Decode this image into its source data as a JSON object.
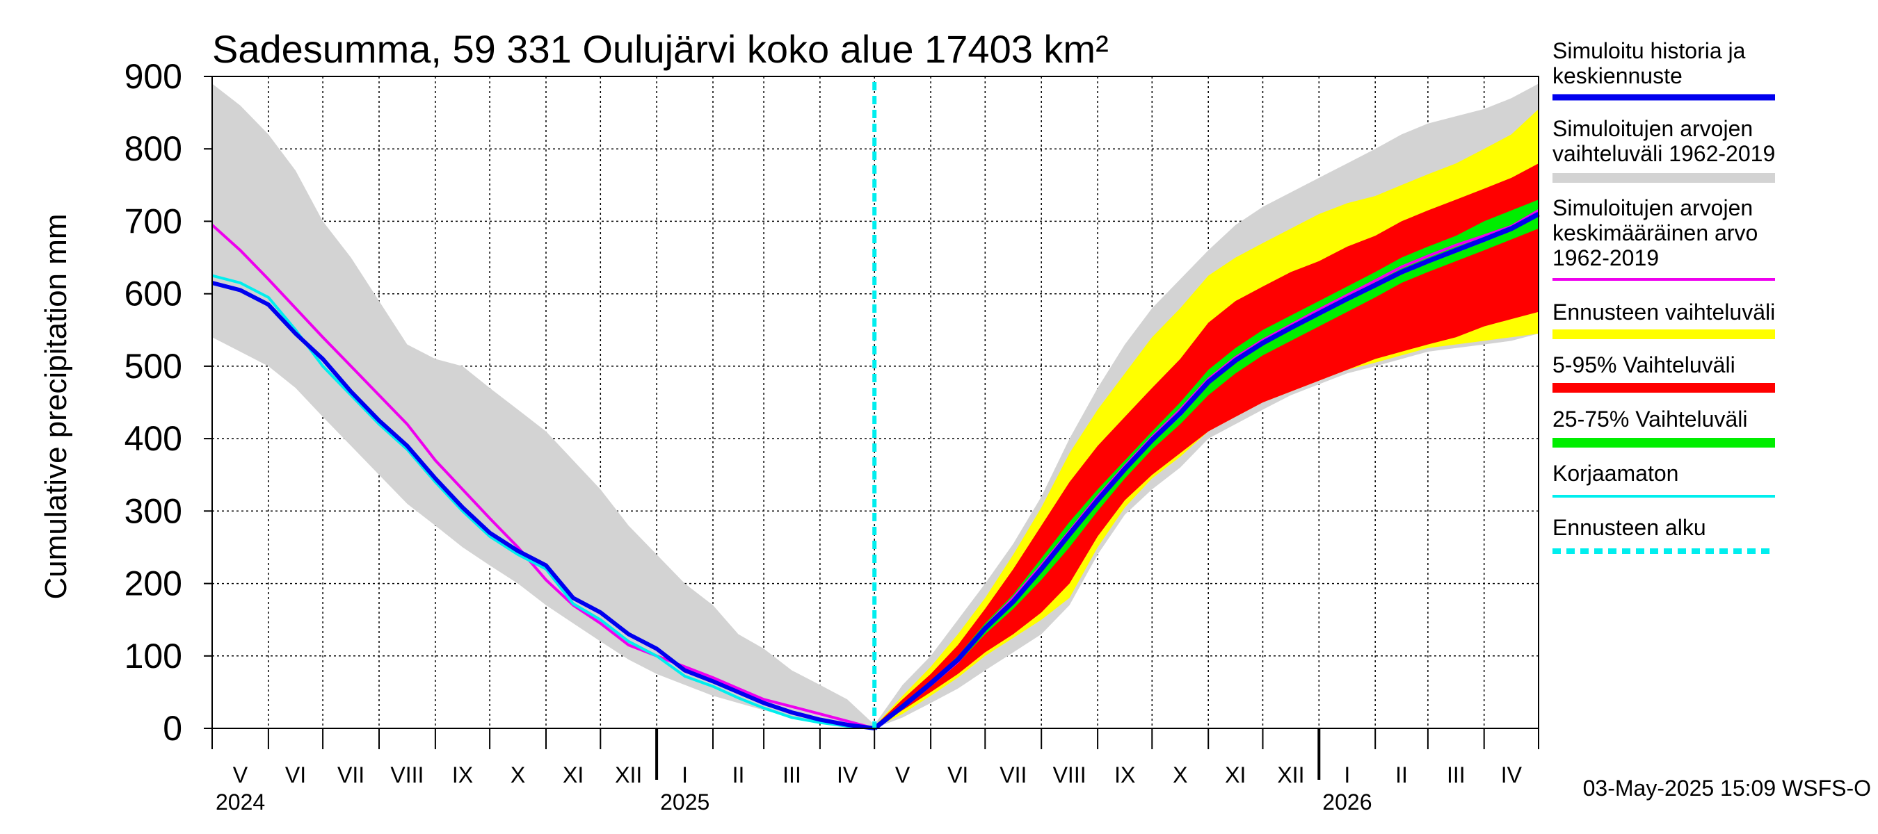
{
  "chart_data": {
    "type": "area",
    "title": "Sadesumma, 59 331 Oulujärvi koko alue 17403 km²",
    "ylabel": "Cumulative precipitation   mm",
    "ylim": [
      0,
      900
    ],
    "yticks": [
      "0",
      "100",
      "200",
      "300",
      "400",
      "500",
      "600",
      "700",
      "800",
      "900"
    ],
    "x_start": "2024-05-01",
    "x_end": "2026-05-01",
    "forecast_start": "2025-05-01",
    "months": [
      "V",
      "VI",
      "VII",
      "VIII",
      "IX",
      "X",
      "XI",
      "XII",
      "I",
      "II",
      "III",
      "IV",
      "V",
      "VI",
      "VII",
      "VIII",
      "IX",
      "X",
      "XI",
      "XII",
      "I",
      "II",
      "III",
      "IV"
    ],
    "years": [
      "2024",
      "2025",
      "2026"
    ],
    "timestamp": "03-May-2025 15:09 WSFS-O",
    "legend": [
      {
        "label": "Simuloitu historia ja keskiennuste",
        "lines": [
          "Simuloitu historia ja",
          "keskiennuste"
        ],
        "color": "#0000ee",
        "style": "line"
      },
      {
        "label": "Simuloitujen arvojen vaihteluväli 1962-2019",
        "lines": [
          "Simuloitujen arvojen",
          "vaihteluväli 1962-2019"
        ],
        "color": "#d3d3d3",
        "style": "band"
      },
      {
        "label": "Simuloitujen arvojen keskimääräinen arvo 1962-2019",
        "lines": [
          "Simuloitujen arvojen",
          "keskimääräinen arvo",
          "   1962-2019"
        ],
        "color": "#ee00ee",
        "style": "thin"
      },
      {
        "label": "Ennusteen vaihteluväli",
        "lines": [
          "Ennusteen vaihteluväli"
        ],
        "color": "#ffff00",
        "style": "band"
      },
      {
        "label": "5-95% Vaihteluväli",
        "lines": [
          "5-95% Vaihteluväli"
        ],
        "color": "#ff0000",
        "style": "band"
      },
      {
        "label": "25-75% Vaihteluväli",
        "lines": [
          "25-75% Vaihteluväli"
        ],
        "color": "#00ee00",
        "style": "band"
      },
      {
        "label": "Korjaamaton",
        "lines": [
          "Korjaamaton"
        ],
        "color": "#00eeee",
        "style": "thin"
      },
      {
        "label": "Ennusteen alku",
        "lines": [
          "Ennusteen alku"
        ],
        "color": "#00eeee",
        "style": "dashed"
      }
    ],
    "history": {
      "x_month": [
        0,
        0.5,
        1,
        1.5,
        2,
        2.5,
        3,
        3.5,
        4,
        4.5,
        5,
        5.5,
        6,
        6.5,
        7,
        7.5,
        8,
        8.5,
        9,
        9.5,
        10,
        10.5,
        11,
        11.5,
        12
      ],
      "range_high": [
        890,
        860,
        820,
        770,
        700,
        650,
        590,
        530,
        510,
        500,
        470,
        440,
        410,
        370,
        330,
        280,
        240,
        200,
        170,
        130,
        110,
        80,
        60,
        40,
        5
      ],
      "range_low": [
        540,
        520,
        500,
        470,
        430,
        390,
        350,
        310,
        280,
        250,
        225,
        200,
        170,
        145,
        120,
        95,
        75,
        60,
        45,
        35,
        25,
        15,
        8,
        3,
        0
      ],
      "mean": [
        695,
        660,
        620,
        580,
        540,
        500,
        460,
        420,
        370,
        330,
        290,
        250,
        205,
        170,
        145,
        115,
        100,
        85,
        70,
        55,
        40,
        30,
        20,
        10,
        0
      ],
      "simulated": [
        615,
        605,
        585,
        545,
        510,
        465,
        425,
        390,
        345,
        305,
        270,
        245,
        225,
        180,
        160,
        130,
        110,
        80,
        65,
        50,
        35,
        22,
        12,
        5,
        0
      ],
      "uncorrected": [
        625,
        615,
        595,
        550,
        500,
        460,
        420,
        385,
        340,
        300,
        265,
        240,
        220,
        172,
        150,
        120,
        100,
        72,
        58,
        42,
        28,
        15,
        8,
        3,
        0
      ]
    },
    "forecast": {
      "x_month": [
        12,
        12.5,
        13,
        13.5,
        14,
        14.5,
        15,
        15.5,
        16,
        16.5,
        17,
        17.5,
        18,
        18.5,
        19,
        19.5,
        20,
        20.5,
        21,
        21.5,
        22,
        22.5,
        23,
        23.5,
        24
      ],
      "range_high": [
        5,
        60,
        100,
        150,
        200,
        255,
        320,
        400,
        470,
        530,
        580,
        620,
        660,
        695,
        720,
        740,
        760,
        780,
        800,
        820,
        835,
        845,
        855,
        870,
        890
      ],
      "range_low": [
        0,
        15,
        35,
        55,
        80,
        105,
        130,
        170,
        240,
        295,
        330,
        360,
        400,
        420,
        440,
        460,
        475,
        490,
        500,
        510,
        520,
        525,
        530,
        535,
        545
      ],
      "env_high": [
        3,
        45,
        85,
        130,
        180,
        240,
        305,
        380,
        440,
        490,
        540,
        580,
        625,
        650,
        670,
        690,
        710,
        725,
        735,
        750,
        765,
        780,
        800,
        820,
        855
      ],
      "env_low": [
        0,
        20,
        45,
        70,
        100,
        125,
        150,
        180,
        250,
        305,
        345,
        375,
        410,
        430,
        450,
        465,
        480,
        495,
        505,
        515,
        525,
        530,
        535,
        540,
        545
      ],
      "p95": [
        3,
        40,
        75,
        115,
        165,
        220,
        280,
        340,
        390,
        430,
        470,
        510,
        560,
        590,
        610,
        630,
        645,
        665,
        680,
        700,
        715,
        730,
        745,
        760,
        780
      ],
      "p5": [
        0,
        25,
        50,
        75,
        105,
        130,
        160,
        200,
        265,
        315,
        350,
        380,
        410,
        430,
        450,
        465,
        480,
        495,
        510,
        520,
        530,
        540,
        555,
        565,
        575
      ],
      "p75": [
        2,
        32,
        65,
        100,
        145,
        185,
        235,
        285,
        330,
        370,
        410,
        450,
        495,
        525,
        550,
        570,
        590,
        610,
        630,
        650,
        665,
        680,
        700,
        715,
        730
      ],
      "p25": [
        1,
        28,
        58,
        90,
        130,
        165,
        205,
        250,
        300,
        345,
        385,
        420,
        460,
        490,
        515,
        535,
        555,
        575,
        595,
        615,
        630,
        645,
        660,
        675,
        690
      ],
      "median": [
        0,
        30,
        62,
        95,
        138,
        175,
        220,
        268,
        315,
        358,
        398,
        435,
        478,
        508,
        532,
        553,
        573,
        593,
        612,
        630,
        645,
        660,
        675,
        690,
        710
      ],
      "mean": [
        0,
        28,
        60,
        92,
        140,
        180,
        225,
        272,
        320,
        362,
        402,
        440,
        482,
        512,
        536,
        557,
        578,
        598,
        618,
        637,
        652,
        667,
        680,
        693,
        715
      ],
      "uncorrected": [
        0,
        29,
        61,
        94,
        137,
        174,
        218,
        266,
        313,
        356,
        396,
        432,
        476,
        506,
        530,
        551,
        571,
        591,
        610,
        628,
        643,
        658,
        673,
        688,
        708
      ]
    }
  }
}
